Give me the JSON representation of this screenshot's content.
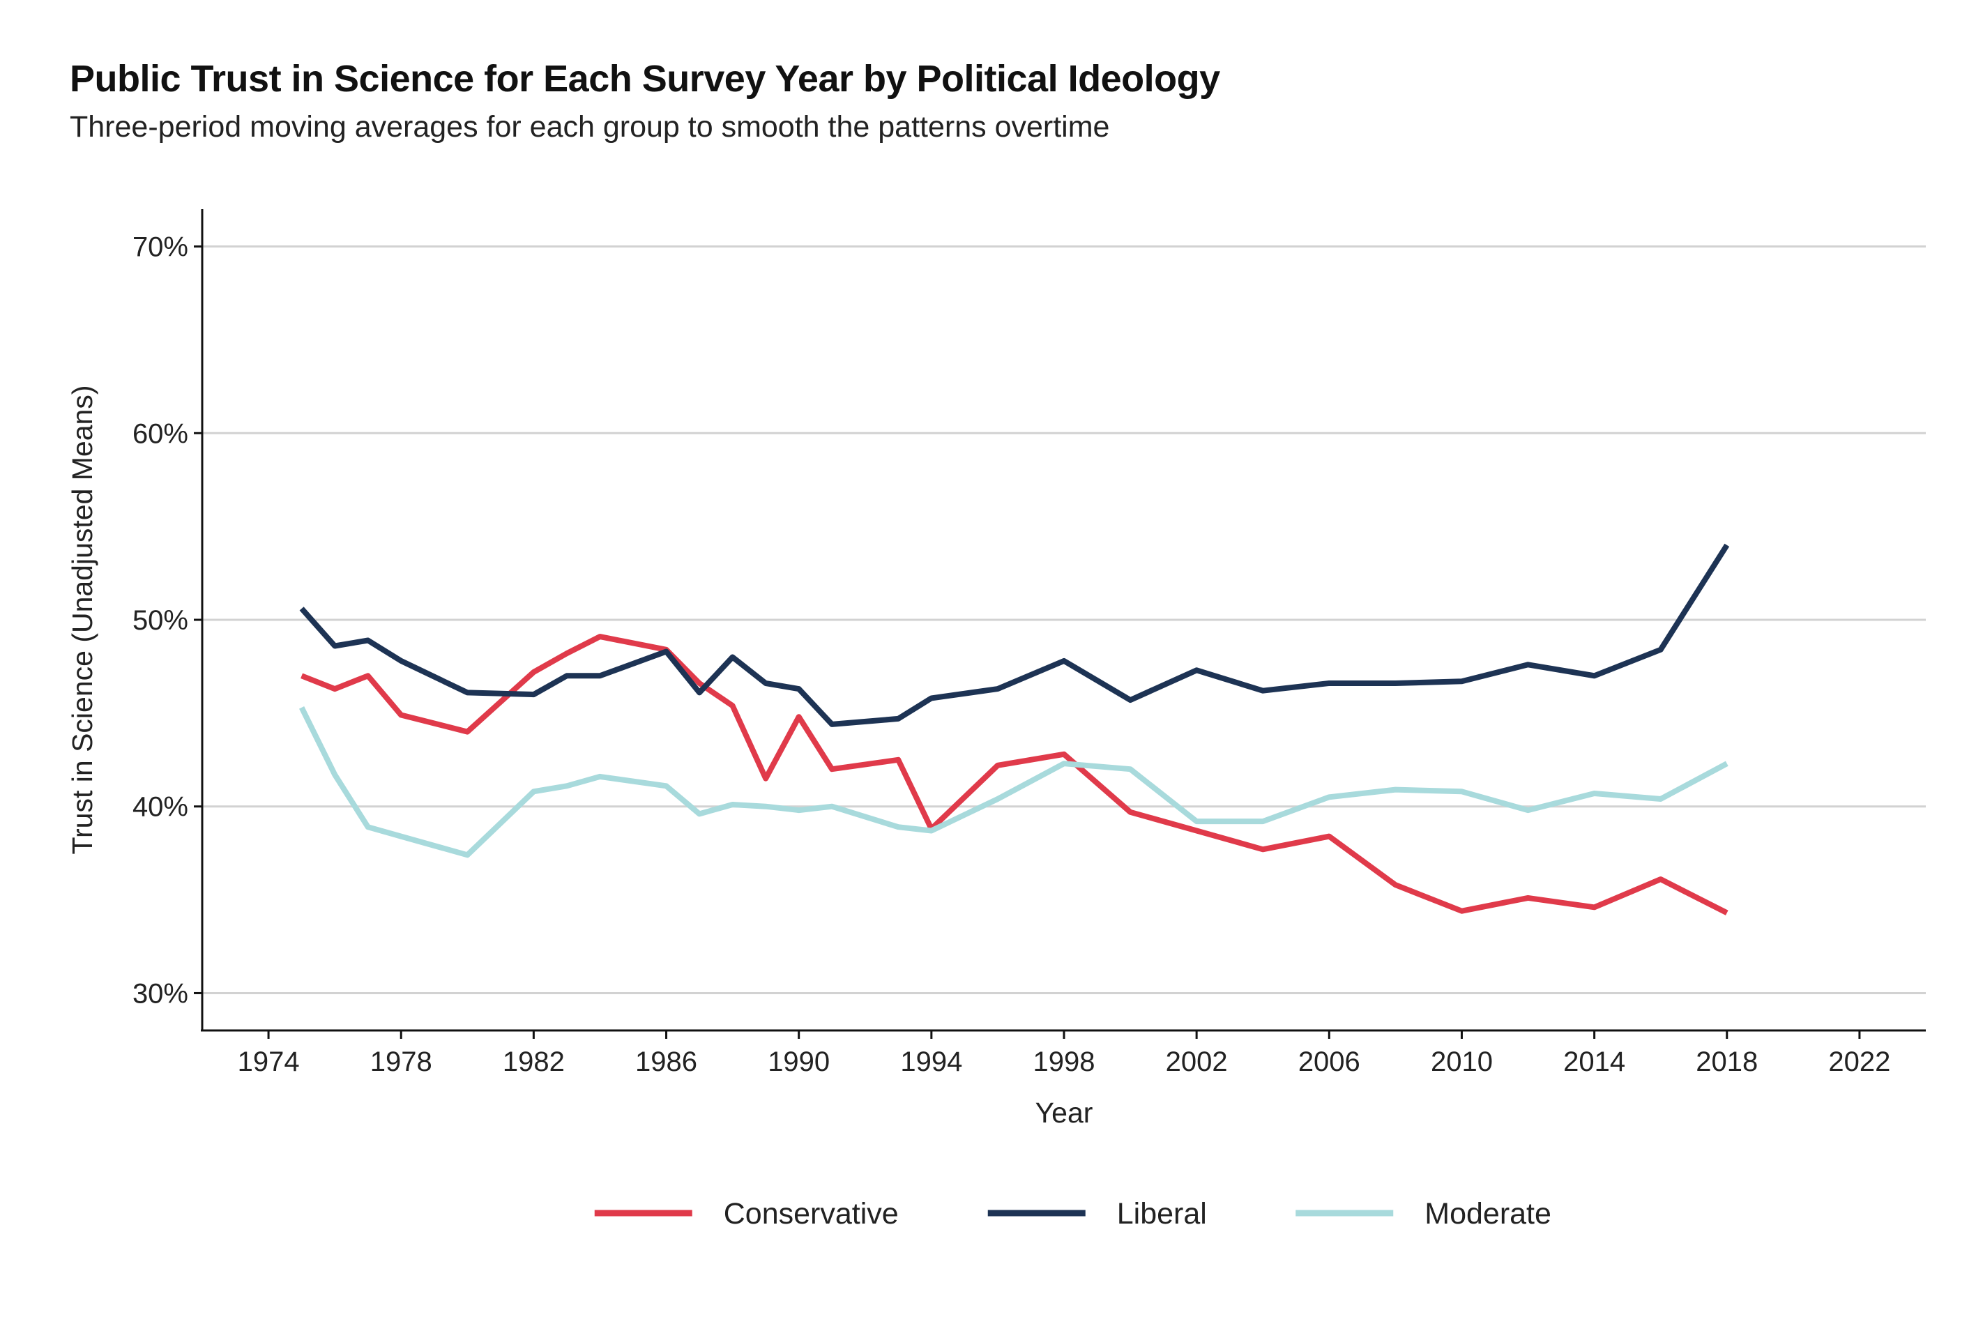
{
  "chart_data": {
    "type": "line",
    "title": "Public Trust in Science for Each Survey Year by Political Ideology",
    "subtitle": "Three-period moving averages for each group to smooth the patterns overtime",
    "xlabel": "Year",
    "ylabel": "Trust in Science (Unadjusted Means)",
    "xlim": [
      1972,
      2024
    ],
    "ylim": [
      28,
      72
    ],
    "x_ticks": [
      1974,
      1978,
      1982,
      1986,
      1990,
      1994,
      1998,
      2002,
      2006,
      2010,
      2014,
      2018,
      2022
    ],
    "x_tick_labels": [
      "1974",
      "1978",
      "1982",
      "1986",
      "1990",
      "1994",
      "1998",
      "2002",
      "2006",
      "2010",
      "2014",
      "2018",
      "2022"
    ],
    "y_ticks": [
      30,
      40,
      50,
      60,
      70
    ],
    "y_tick_labels": [
      "30%",
      "40%",
      "50%",
      "60%",
      "70%"
    ],
    "grid": "horizontal",
    "legend_position": "bottom",
    "series": [
      {
        "name": "Conservative",
        "color": "#E03A4A",
        "x": [
          1975,
          1976,
          1977,
          1978,
          1980,
          1982,
          1983,
          1984,
          1986,
          1987,
          1988,
          1989,
          1990,
          1991,
          1993,
          1994,
          1996,
          1998,
          2000,
          2002,
          2004,
          2006,
          2008,
          2010,
          2012,
          2014,
          2016,
          2018
        ],
        "y": [
          47.0,
          46.3,
          47.0,
          44.9,
          44.0,
          47.2,
          48.2,
          49.1,
          48.4,
          46.6,
          45.4,
          41.5,
          44.8,
          42.0,
          42.5,
          38.8,
          42.2,
          42.8,
          39.7,
          38.7,
          37.7,
          38.4,
          35.8,
          34.4,
          35.1,
          34.6,
          36.1,
          34.3
        ]
      },
      {
        "name": "Liberal",
        "color": "#1D3354",
        "x": [
          1975,
          1976,
          1977,
          1978,
          1980,
          1982,
          1983,
          1984,
          1986,
          1987,
          1988,
          1989,
          1990,
          1991,
          1993,
          1994,
          1996,
          1998,
          2000,
          2002,
          2004,
          2006,
          2008,
          2010,
          2012,
          2014,
          2016,
          2018
        ],
        "y": [
          50.6,
          48.6,
          48.9,
          47.8,
          46.1,
          46.0,
          47.0,
          47.0,
          48.3,
          46.1,
          48.0,
          46.6,
          46.3,
          44.4,
          44.7,
          45.8,
          46.3,
          47.8,
          45.7,
          47.3,
          46.2,
          46.6,
          46.6,
          46.7,
          47.6,
          47.0,
          48.4,
          54.0
        ]
      },
      {
        "name": "Moderate",
        "color": "#A8DADC",
        "x": [
          1975,
          1976,
          1977,
          1978,
          1980,
          1982,
          1983,
          1984,
          1986,
          1987,
          1988,
          1989,
          1990,
          1991,
          1993,
          1994,
          1996,
          1998,
          2000,
          2002,
          2004,
          2006,
          2008,
          2010,
          2012,
          2014,
          2016,
          2018
        ],
        "y": [
          45.3,
          41.7,
          38.9,
          38.4,
          37.4,
          40.8,
          41.1,
          41.6,
          41.1,
          39.6,
          40.1,
          40.0,
          39.8,
          40.0,
          38.9,
          38.7,
          40.4,
          42.3,
          42.0,
          39.2,
          39.2,
          40.5,
          40.9,
          40.8,
          39.8,
          40.7,
          40.4,
          42.3
        ]
      }
    ]
  }
}
